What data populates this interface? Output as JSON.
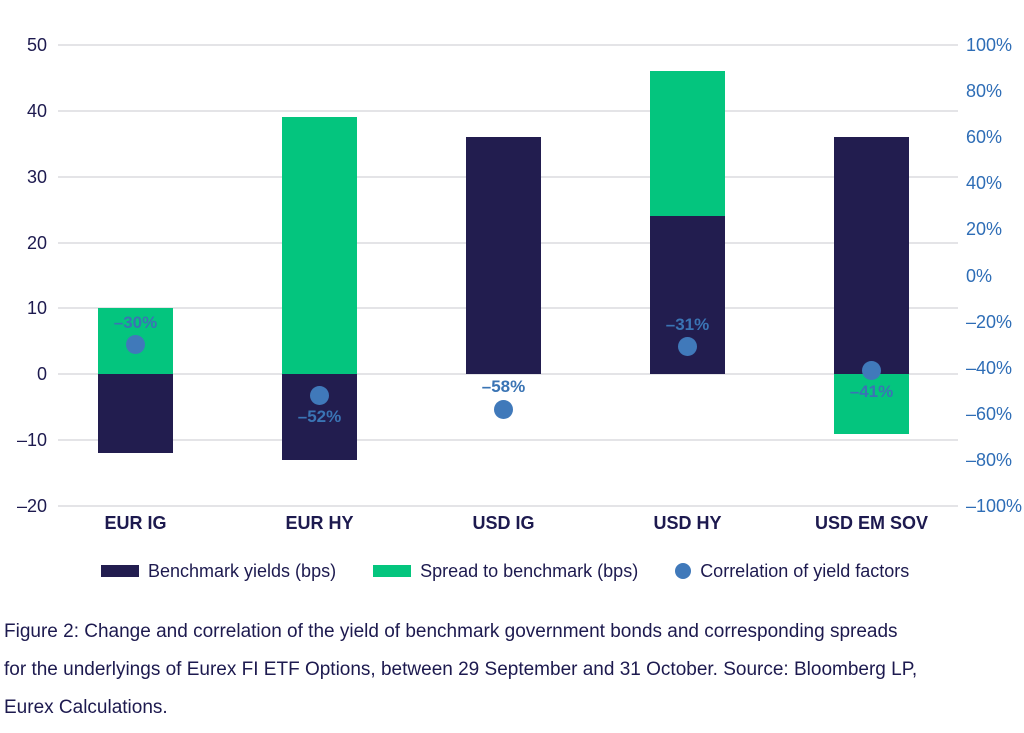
{
  "colors": {
    "navy": "#221d4f",
    "green": "#04c57e",
    "dot_blue": "#4079ba",
    "dot_label_blue": "#3a74b4",
    "right_axis_blue": "#2e6db6",
    "axis_navy": "#1d1a4f",
    "gridline": "#e4e4e7"
  },
  "chart_data": {
    "type": "bar",
    "stacked": true,
    "title": "",
    "categories": [
      "EUR IG",
      "EUR HY",
      "USD IG",
      "USD HY",
      "USD EM SOV"
    ],
    "series": [
      {
        "name": "Benchmark yields (bps)",
        "kind": "bar",
        "axis": "left",
        "color_key": "navy",
        "values": [
          -12,
          -13,
          36,
          24,
          36
        ]
      },
      {
        "name": "Spread to benchmark (bps)",
        "kind": "bar",
        "axis": "left",
        "color_key": "green",
        "values": [
          10,
          39,
          0,
          22,
          -9
        ]
      },
      {
        "name": "Correlation of yield factors",
        "kind": "point",
        "axis": "right",
        "color_key": "dot_blue",
        "values": [
          -30,
          -52,
          -58,
          -31,
          -41
        ],
        "point_labels": [
          "–30%",
          "–52%",
          "–58%",
          "–31%",
          "–41%"
        ],
        "label_positions": [
          "above",
          "below",
          "above",
          "above",
          "below"
        ]
      }
    ],
    "left_axis": {
      "min": -20,
      "max": 50,
      "step": 10,
      "tick_labels": [
        "50",
        "40",
        "30",
        "20",
        "10",
        "0",
        "–10",
        "–20"
      ]
    },
    "right_axis": {
      "min": -100,
      "max": 100,
      "step": 20,
      "tick_labels": [
        "100%",
        "80%",
        "60%",
        "40%",
        "20%",
        "0%",
        "–20%",
        "–40%",
        "–60%",
        "–80%",
        "–100%"
      ]
    },
    "grid": "horizontal",
    "legend_position": "bottom"
  },
  "legend": {
    "items": [
      {
        "label": "Benchmark yields (bps)",
        "swatch": "rect",
        "color_key": "navy"
      },
      {
        "label": "Spread to benchmark (bps)",
        "swatch": "rect",
        "color_key": "green"
      },
      {
        "label": "Correlation of yield factors",
        "swatch": "circle",
        "color_key": "dot_blue"
      }
    ]
  },
  "caption": {
    "lines": [
      "Figure 2: Change and correlation of the yield of benchmark government bonds and corresponding spreads",
      "for the underlyings of Eurex FI ETF Options, between 29 September and 31 October. Source: Bloomberg LP,",
      "Eurex Calculations."
    ]
  }
}
